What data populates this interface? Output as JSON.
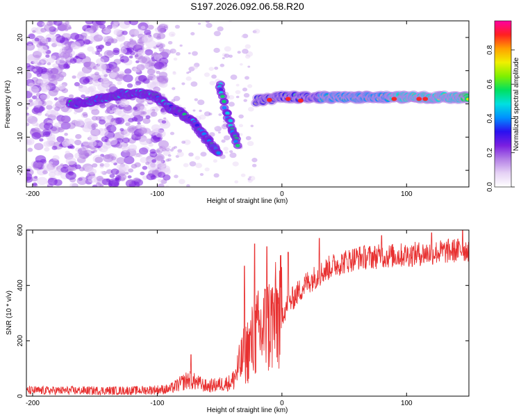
{
  "title": "S197.2026.092.06.58.R20",
  "chart_data": [
    {
      "type": "heatmap",
      "name": "spectrogram",
      "xlabel": "Height of straight line (km)",
      "ylabel": "Frequency (Hz)",
      "xlim": [
        -205,
        150
      ],
      "ylim": [
        -25,
        25
      ],
      "xticks": [
        -200,
        -100,
        0,
        100
      ],
      "yticks": [
        20,
        10,
        0,
        -10,
        -20
      ],
      "colorbar": {
        "label": "Normalized spectral amplitude",
        "range": [
          0,
          0.97
        ],
        "ticks": [
          0.0,
          0.2,
          0.4,
          0.6,
          0.8
        ],
        "tick_labels": [
          "0.0",
          "0.2",
          "0.4",
          "0.6",
          "0.8"
        ],
        "colormap": [
          "#ffffff",
          "#e6d2f5",
          "#b480e6",
          "#7a1fe0",
          "#2a10f0",
          "#0090ff",
          "#00e0e0",
          "#00e060",
          "#80f000",
          "#f0f000",
          "#ffa000",
          "#ff2020",
          "#ff00a0"
        ]
      },
      "noise_region_km": [
        -205,
        -100
      ],
      "features": [
        {
          "name": "ridge-left",
          "points": [
            [
              -170,
              0
            ],
            [
              -150,
              1
            ],
            [
              -130,
              3
            ],
            [
              -110,
              3
            ],
            [
              -100,
              2
            ]
          ]
        },
        {
          "name": "descending-track",
          "points": [
            [
              -100,
              2
            ],
            [
              -90,
              -1
            ],
            [
              -80,
              -3
            ],
            [
              -70,
              -6
            ],
            [
              -60,
              -11
            ],
            [
              -50,
              -15
            ]
          ]
        },
        {
          "name": "secondary-track",
          "points": [
            [
              -50,
              6
            ],
            [
              -45,
              -2
            ],
            [
              -40,
              -8
            ],
            [
              -35,
              -13
            ]
          ]
        },
        {
          "name": "flat-tone",
          "points": [
            [
              -20,
              1
            ],
            [
              0,
              2
            ],
            [
              50,
              2
            ],
            [
              100,
              2
            ],
            [
              150,
              2
            ]
          ]
        }
      ]
    },
    {
      "type": "line",
      "name": "snr",
      "xlabel": "Height of straight line (km)",
      "ylabel": "SNR (10 * v/v)",
      "xlim": [
        -205,
        150
      ],
      "ylim": [
        0,
        600
      ],
      "xticks": [
        -200,
        -100,
        0,
        100
      ],
      "yticks": [
        0,
        200,
        400,
        600
      ],
      "color": "#e83030",
      "trend_points": [
        [
          -205,
          20
        ],
        [
          -120,
          20
        ],
        [
          -90,
          25
        ],
        [
          -75,
          60
        ],
        [
          -60,
          35
        ],
        [
          -40,
          50
        ],
        [
          -30,
          150
        ],
        [
          -20,
          220
        ],
        [
          -10,
          260
        ],
        [
          0,
          300
        ],
        [
          10,
          360
        ],
        [
          20,
          410
        ],
        [
          40,
          470
        ],
        [
          60,
          500
        ],
        [
          100,
          510
        ],
        [
          150,
          530
        ]
      ],
      "peaks": [
        [
          -73,
          150
        ],
        [
          -30,
          470
        ],
        [
          -22,
          550
        ],
        [
          -12,
          540
        ],
        [
          5,
          520
        ],
        [
          30,
          570
        ],
        [
          80,
          580
        ],
        [
          120,
          590
        ],
        [
          145,
          600
        ]
      ]
    }
  ]
}
